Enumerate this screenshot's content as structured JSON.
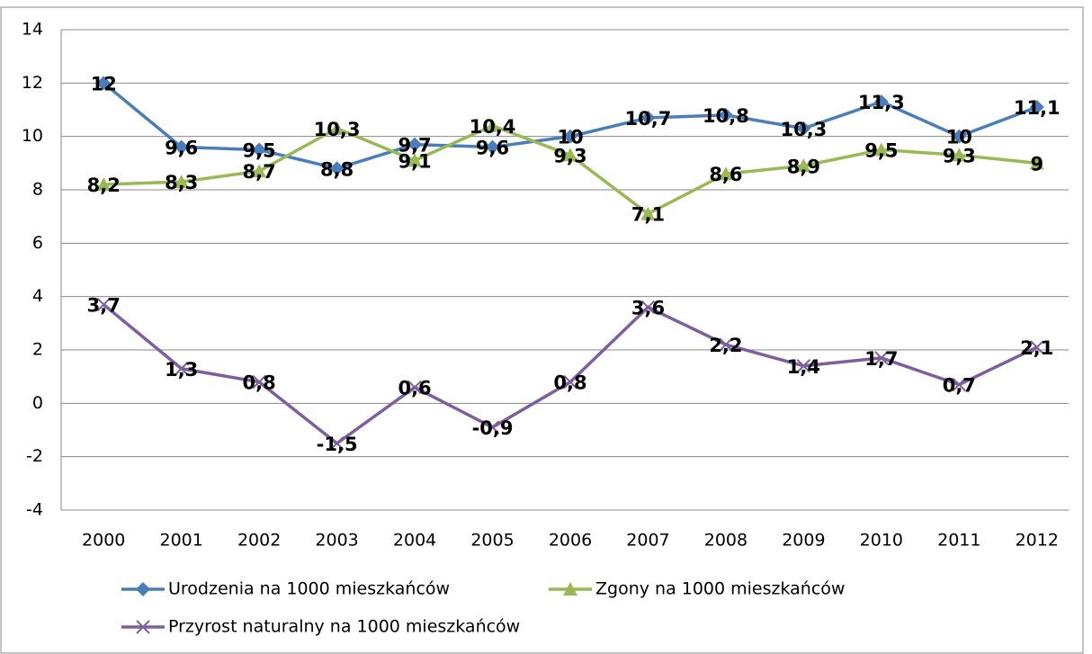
{
  "chart_data": {
    "type": "line",
    "categories": [
      "2000",
      "2001",
      "2002",
      "2003",
      "2004",
      "2005",
      "2006",
      "2007",
      "2008",
      "2009",
      "2010",
      "2011",
      "2012"
    ],
    "series": [
      {
        "name": "Urodzenia na 1000 mieszkańców",
        "color": "#4a7ebb",
        "marker": "diamond",
        "values": [
          12,
          9.6,
          9.5,
          8.8,
          9.7,
          9.6,
          10,
          10.7,
          10.8,
          10.3,
          11.3,
          10,
          11.1
        ],
        "value_labels": [
          "12",
          "9,6",
          "9,5",
          "8,8",
          "9,7",
          "9,6",
          "10",
          "10,7",
          "10,8",
          "10,3",
          "11,3",
          "10",
          "11,1"
        ]
      },
      {
        "name": "Zgony na 1000 mieszkańców",
        "color": "#98b954",
        "marker": "triangle",
        "values": [
          8.2,
          8.3,
          8.7,
          10.3,
          9.1,
          10.4,
          9.3,
          7.1,
          8.6,
          8.9,
          9.5,
          9.3,
          9
        ],
        "value_labels": [
          "8,2",
          "8,3",
          "8,7",
          "10,3",
          "9,1",
          "10,4",
          "9,3",
          "7,1",
          "8,6",
          "8,9",
          "9,5",
          "9,3",
          "9"
        ]
      },
      {
        "name": "Przyrost naturalny na 1000 mieszkańców",
        "color": "#7d5fa0",
        "marker": "x",
        "values": [
          3.7,
          1.3,
          0.8,
          -1.5,
          0.6,
          -0.9,
          0.8,
          3.6,
          2.2,
          1.4,
          1.7,
          0.7,
          2.1
        ],
        "value_labels": [
          "3,7",
          "1,3",
          "0,8",
          "-1,5",
          "0,6",
          "-0,9",
          "0,8",
          "3,6",
          "2,2",
          "1,4",
          "1,7",
          "0,7",
          "2,1"
        ]
      }
    ],
    "ylim": [
      -4,
      14
    ],
    "yticks": [
      -4,
      -2,
      0,
      2,
      4,
      6,
      8,
      10,
      12,
      14
    ],
    "grid": true,
    "legend": "bottom"
  }
}
